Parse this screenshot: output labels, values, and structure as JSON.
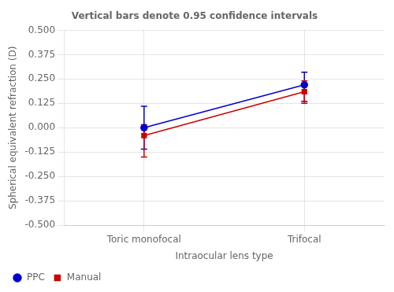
{
  "chart_data": {
    "type": "line",
    "title": "Vertical bars denote 0.95 confidence intervals",
    "xlabel": "Intraocular lens type",
    "ylabel": "Spherical equivalent refraction (D)",
    "categories": [
      "Toric monofocal",
      "Trifocal"
    ],
    "series": [
      {
        "name": "PPC",
        "color": "#0000cc",
        "marker": "circle",
        "values": [
          0.0,
          0.22
        ],
        "err_lower": [
          0.11,
          0.085
        ],
        "err_upper": [
          0.11,
          0.065
        ]
      },
      {
        "name": "Manual",
        "color": "#cc0000",
        "marker": "square",
        "values": [
          -0.04,
          0.185
        ],
        "err_lower": [
          0.11,
          0.06
        ],
        "err_upper": [
          0.055,
          0.055
        ]
      }
    ],
    "ylim": [
      -0.5,
      0.5
    ],
    "yticks": [
      {
        "value": -0.5,
        "label": "-0.500"
      },
      {
        "value": -0.375,
        "label": "-0.375"
      },
      {
        "value": -0.25,
        "label": "-0.250"
      },
      {
        "value": -0.125,
        "label": "-0.125"
      },
      {
        "value": 0.0,
        "label": "0.000"
      },
      {
        "value": 0.125,
        "label": "0.125"
      },
      {
        "value": 0.25,
        "label": "0.250"
      },
      {
        "value": 0.375,
        "label": "0.375"
      },
      {
        "value": 0.5,
        "label": "0.500"
      }
    ],
    "grid": true,
    "legend": "lower left"
  }
}
